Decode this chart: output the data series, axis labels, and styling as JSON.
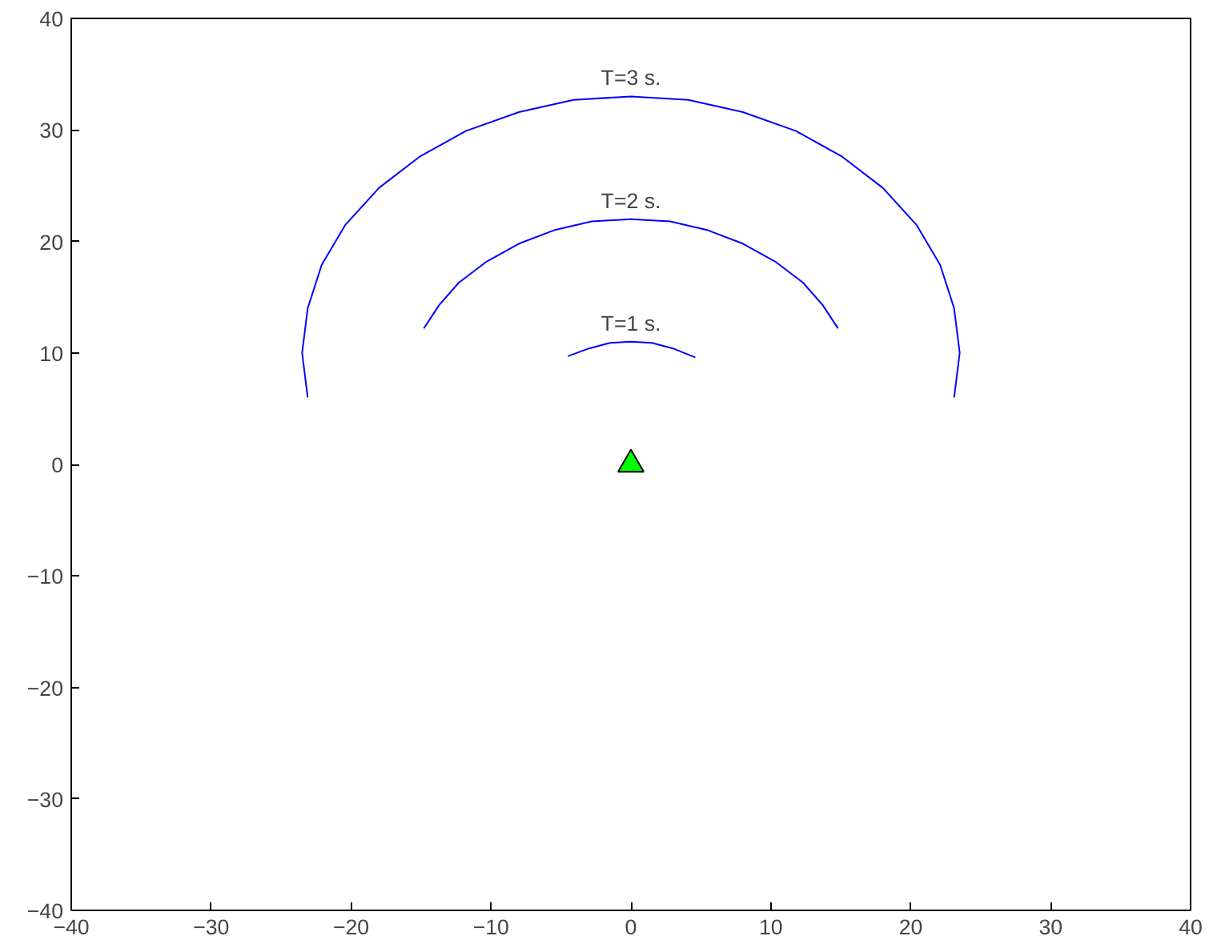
{
  "chart_data": {
    "type": "line",
    "xlim": [
      -40,
      40
    ],
    "ylim": [
      -40,
      40
    ],
    "xticks": [
      -40,
      -30,
      -20,
      -10,
      0,
      10,
      20,
      30,
      40
    ],
    "yticks": [
      -40,
      -30,
      -20,
      -10,
      0,
      10,
      20,
      30,
      40
    ],
    "grid": false,
    "legend": false,
    "line_style": "solid",
    "marker": "none",
    "series": [
      {
        "name": "T=3 s.",
        "color": "#0000ff",
        "x": [
          -23.1,
          -23.5,
          -23.1,
          -22.1,
          -20.4,
          -18.0,
          -15.1,
          -11.8,
          -8.0,
          -4.1,
          0,
          4.1,
          8.0,
          11.8,
          15.1,
          18.0,
          20.4,
          22.1,
          23.1,
          23.5,
          23.1
        ],
        "values": [
          6.0,
          10,
          14.0,
          17.9,
          21.5,
          24.8,
          27.6,
          29.9,
          31.6,
          32.7,
          33,
          32.7,
          31.6,
          29.9,
          27.6,
          24.8,
          21.5,
          17.9,
          14.0,
          10,
          6.0
        ]
      },
      {
        "name": "T=2 s.",
        "color": "#0000ff",
        "x": [
          -14.8,
          -13.7,
          -12.3,
          -10.3,
          -8.0,
          -5.5,
          -2.8,
          0,
          2.8,
          5.5,
          8.0,
          10.3,
          12.3,
          13.7,
          14.8
        ],
        "values": [
          12.2,
          14.3,
          16.3,
          18.2,
          19.8,
          21.0,
          21.8,
          22,
          21.8,
          21.0,
          19.8,
          18.2,
          16.3,
          14.3,
          12.2
        ]
      },
      {
        "name": "T=1 s.",
        "color": "#0000ff",
        "x": [
          -4.5,
          -3,
          -1.5,
          0,
          1.5,
          3,
          4.6
        ],
        "values": [
          9.7,
          10.4,
          10.9,
          11,
          10.9,
          10.4,
          9.6
        ]
      },
      {
        "type": "scatter",
        "marker": "triangle",
        "color": "#00ff00",
        "x": [
          0
        ],
        "values": [
          0
        ]
      }
    ]
  }
}
